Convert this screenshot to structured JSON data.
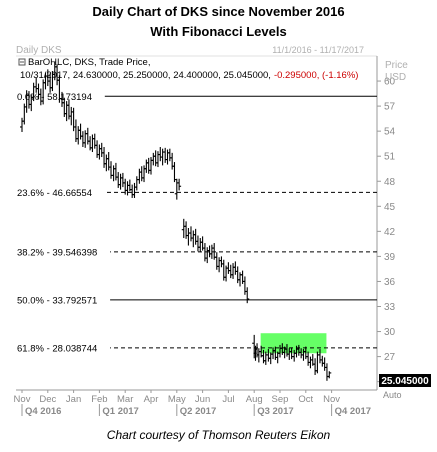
{
  "header": {
    "title_line1": "Daily Chart of DKS since November 2016",
    "title_line2": "With Fibonacci Levels"
  },
  "chart_header": {
    "symbol": "Daily DKS",
    "date_range": "11/1/2016 - 11/17/2017",
    "legend_study": "BarOHLC, DKS, Trade Price,",
    "legend_values_black": "10/31/2017, 24.630000, 25.250000, 24.400000, 25.045000,",
    "legend_values_red": "-0.295000, (-1.16%)",
    "axis_title_line1": "Price",
    "axis_title_line2": "USD"
  },
  "footer": {
    "credit": "Chart courtesy of Thomson Reuters Eikon",
    "auto_label": "Auto"
  },
  "colors": {
    "bars": "#000000",
    "fib_lines": "#000000",
    "highlight": "#66ff66",
    "negative_change": "#cc0000",
    "last_price_tag": "#000000"
  },
  "chart_data": {
    "type": "ohlc",
    "ylim": [
      23,
      63
    ],
    "y_ticks": [
      24,
      27,
      30,
      33,
      36,
      39,
      42,
      45,
      48,
      51,
      54,
      57,
      60
    ],
    "x_month_labels": [
      "Nov",
      "Dec",
      "Jan",
      "Feb",
      "Mar",
      "Apr",
      "May",
      "Jun",
      "Jul",
      "Aug",
      "Sep",
      "Oct",
      "Nov"
    ],
    "x_period_labels": [
      "Q4 2016",
      "Q1 2017",
      "Q2 2017",
      "Q3 2017",
      "Q4 2017"
    ],
    "fibonacci_levels": [
      {
        "label": "0.0%",
        "value": "58.173194",
        "price": 58.173194,
        "style": "solid"
      },
      {
        "label": "23.6%",
        "value": "46.66554",
        "price": 46.66554,
        "style": "dashed"
      },
      {
        "label": "38.2%",
        "value": "39.546398",
        "price": 39.546398,
        "style": "dashed"
      },
      {
        "label": "50.0%",
        "value": "33.792571",
        "price": 33.792571,
        "style": "solid"
      },
      {
        "label": "61.8%",
        "value": "28.038744",
        "price": 28.038744,
        "style": "dashed"
      }
    ],
    "highlight_zone": {
      "low": 27.4,
      "high": 29.8,
      "start_month_index": 9.25,
      "end_month_index": 11.8
    },
    "last_price": "25.045000",
    "last_price_value": 25.045,
    "bars": [
      {
        "t": 0.0,
        "o": 54.5,
        "h": 55.6,
        "l": 53.9,
        "c": 55.2
      },
      {
        "t": 0.09,
        "o": 55.2,
        "h": 57.3,
        "l": 54.8,
        "c": 56.9
      },
      {
        "t": 0.18,
        "o": 56.9,
        "h": 58.9,
        "l": 56.2,
        "c": 58.3
      },
      {
        "t": 0.27,
        "o": 58.3,
        "h": 58.8,
        "l": 56.7,
        "c": 57.2
      },
      {
        "t": 0.36,
        "o": 57.2,
        "h": 58.4,
        "l": 56.4,
        "c": 58.0
      },
      {
        "t": 0.45,
        "o": 58.0,
        "h": 59.8,
        "l": 57.6,
        "c": 59.3
      },
      {
        "t": 0.55,
        "o": 59.3,
        "h": 60.4,
        "l": 58.6,
        "c": 59.1
      },
      {
        "t": 0.64,
        "o": 59.1,
        "h": 59.7,
        "l": 57.8,
        "c": 58.4
      },
      {
        "t": 0.73,
        "o": 58.4,
        "h": 59.1,
        "l": 57.1,
        "c": 57.6
      },
      {
        "t": 0.82,
        "o": 57.6,
        "h": 60.2,
        "l": 57.2,
        "c": 59.8
      },
      {
        "t": 0.91,
        "o": 59.8,
        "h": 61.0,
        "l": 59.0,
        "c": 60.6
      },
      {
        "t": 1.0,
        "o": 60.6,
        "h": 61.4,
        "l": 59.4,
        "c": 60.0
      },
      {
        "t": 1.09,
        "o": 60.0,
        "h": 60.9,
        "l": 58.6,
        "c": 59.2
      },
      {
        "t": 1.18,
        "o": 59.2,
        "h": 61.2,
        "l": 58.8,
        "c": 60.8
      },
      {
        "t": 1.27,
        "o": 60.8,
        "h": 62.3,
        "l": 60.1,
        "c": 61.7
      },
      {
        "t": 1.36,
        "o": 61.7,
        "h": 62.0,
        "l": 59.5,
        "c": 60.1
      },
      {
        "t": 1.45,
        "o": 60.1,
        "h": 60.7,
        "l": 57.4,
        "c": 57.9
      },
      {
        "t": 1.55,
        "o": 57.9,
        "h": 58.7,
        "l": 56.9,
        "c": 57.4
      },
      {
        "t": 1.64,
        "o": 57.4,
        "h": 58.0,
        "l": 55.7,
        "c": 56.1
      },
      {
        "t": 1.73,
        "o": 56.1,
        "h": 57.6,
        "l": 55.2,
        "c": 57.1
      },
      {
        "t": 1.82,
        "o": 57.1,
        "h": 57.8,
        "l": 55.4,
        "c": 55.8
      },
      {
        "t": 1.91,
        "o": 55.8,
        "h": 56.9,
        "l": 54.7,
        "c": 56.3
      },
      {
        "t": 2.0,
        "o": 56.3,
        "h": 56.8,
        "l": 54.0,
        "c": 54.5
      },
      {
        "t": 2.09,
        "o": 54.5,
        "h": 55.4,
        "l": 52.7,
        "c": 53.1
      },
      {
        "t": 2.18,
        "o": 53.1,
        "h": 54.6,
        "l": 52.4,
        "c": 54.1
      },
      {
        "t": 2.27,
        "o": 54.1,
        "h": 54.9,
        "l": 53.0,
        "c": 53.4
      },
      {
        "t": 2.36,
        "o": 53.4,
        "h": 54.0,
        "l": 52.1,
        "c": 52.6
      },
      {
        "t": 2.45,
        "o": 52.6,
        "h": 54.1,
        "l": 52.0,
        "c": 53.7
      },
      {
        "t": 2.55,
        "o": 53.7,
        "h": 54.4,
        "l": 52.4,
        "c": 52.8
      },
      {
        "t": 2.64,
        "o": 52.8,
        "h": 53.4,
        "l": 51.7,
        "c": 52.0
      },
      {
        "t": 2.73,
        "o": 52.0,
        "h": 53.6,
        "l": 51.5,
        "c": 53.1
      },
      {
        "t": 2.82,
        "o": 53.1,
        "h": 53.7,
        "l": 51.9,
        "c": 52.3
      },
      {
        "t": 2.91,
        "o": 52.3,
        "h": 52.9,
        "l": 50.8,
        "c": 51.2
      },
      {
        "t": 3.0,
        "o": 51.2,
        "h": 52.4,
        "l": 50.6,
        "c": 51.9
      },
      {
        "t": 3.09,
        "o": 51.9,
        "h": 52.6,
        "l": 50.9,
        "c": 51.4
      },
      {
        "t": 3.18,
        "o": 51.4,
        "h": 52.1,
        "l": 49.6,
        "c": 50.1
      },
      {
        "t": 3.27,
        "o": 50.1,
        "h": 51.2,
        "l": 49.2,
        "c": 50.7
      },
      {
        "t": 3.36,
        "o": 50.7,
        "h": 51.5,
        "l": 49.3,
        "c": 49.7
      },
      {
        "t": 3.45,
        "o": 49.7,
        "h": 50.4,
        "l": 48.3,
        "c": 48.7
      },
      {
        "t": 3.55,
        "o": 48.7,
        "h": 49.9,
        "l": 48.0,
        "c": 49.5
      },
      {
        "t": 3.64,
        "o": 49.5,
        "h": 50.2,
        "l": 48.1,
        "c": 48.5
      },
      {
        "t": 3.73,
        "o": 48.5,
        "h": 49.1,
        "l": 47.2,
        "c": 47.6
      },
      {
        "t": 3.82,
        "o": 47.6,
        "h": 48.9,
        "l": 47.0,
        "c": 48.4
      },
      {
        "t": 3.91,
        "o": 48.4,
        "h": 49.0,
        "l": 47.3,
        "c": 47.8
      },
      {
        "t": 4.0,
        "o": 47.8,
        "h": 48.3,
        "l": 46.4,
        "c": 46.9
      },
      {
        "t": 4.09,
        "o": 46.9,
        "h": 48.0,
        "l": 46.3,
        "c": 47.5
      },
      {
        "t": 4.18,
        "o": 47.5,
        "h": 48.2,
        "l": 46.8,
        "c": 47.0
      },
      {
        "t": 4.27,
        "o": 47.0,
        "h": 47.6,
        "l": 46.0,
        "c": 46.4
      },
      {
        "t": 4.36,
        "o": 46.4,
        "h": 47.8,
        "l": 46.0,
        "c": 47.3
      },
      {
        "t": 4.45,
        "o": 47.3,
        "h": 48.6,
        "l": 46.9,
        "c": 48.2
      },
      {
        "t": 4.55,
        "o": 48.2,
        "h": 49.5,
        "l": 47.7,
        "c": 49.1
      },
      {
        "t": 4.64,
        "o": 49.1,
        "h": 49.8,
        "l": 48.0,
        "c": 48.4
      },
      {
        "t": 4.73,
        "o": 48.4,
        "h": 49.9,
        "l": 47.9,
        "c": 49.5
      },
      {
        "t": 4.82,
        "o": 49.5,
        "h": 50.6,
        "l": 49.0,
        "c": 50.2
      },
      {
        "t": 4.91,
        "o": 50.2,
        "h": 50.8,
        "l": 48.9,
        "c": 49.3
      },
      {
        "t": 5.0,
        "o": 49.3,
        "h": 50.9,
        "l": 48.8,
        "c": 50.5
      },
      {
        "t": 5.09,
        "o": 50.5,
        "h": 51.4,
        "l": 49.9,
        "c": 51.0
      },
      {
        "t": 5.18,
        "o": 51.0,
        "h": 51.7,
        "l": 49.8,
        "c": 50.2
      },
      {
        "t": 5.27,
        "o": 50.2,
        "h": 51.6,
        "l": 49.7,
        "c": 51.2
      },
      {
        "t": 5.36,
        "o": 51.2,
        "h": 52.1,
        "l": 50.4,
        "c": 50.9
      },
      {
        "t": 5.45,
        "o": 50.9,
        "h": 51.9,
        "l": 49.9,
        "c": 51.5
      },
      {
        "t": 5.55,
        "o": 51.5,
        "h": 52.0,
        "l": 50.2,
        "c": 50.6
      },
      {
        "t": 5.64,
        "o": 50.6,
        "h": 51.8,
        "l": 50.0,
        "c": 51.4
      },
      {
        "t": 5.73,
        "o": 51.4,
        "h": 51.9,
        "l": 50.4,
        "c": 50.8
      },
      {
        "t": 5.82,
        "o": 50.8,
        "h": 51.4,
        "l": 49.4,
        "c": 49.8
      },
      {
        "t": 5.91,
        "o": 49.8,
        "h": 50.3,
        "l": 47.9,
        "c": 48.2
      },
      {
        "t": 6.0,
        "o": 46.5,
        "h": 48.3,
        "l": 45.8,
        "c": 47.8
      },
      {
        "t": 6.09,
        "o": 47.8,
        "h": 48.3,
        "l": 46.9,
        "c": 47.4
      },
      {
        "t": 6.27,
        "o": 42.2,
        "h": 43.5,
        "l": 41.2,
        "c": 42.6
      },
      {
        "t": 6.36,
        "o": 42.6,
        "h": 43.2,
        "l": 41.1,
        "c": 41.5
      },
      {
        "t": 6.45,
        "o": 41.5,
        "h": 42.4,
        "l": 40.3,
        "c": 41.8
      },
      {
        "t": 6.55,
        "o": 41.8,
        "h": 42.6,
        "l": 40.8,
        "c": 41.2
      },
      {
        "t": 6.64,
        "o": 41.2,
        "h": 42.1,
        "l": 40.1,
        "c": 41.6
      },
      {
        "t": 6.73,
        "o": 41.6,
        "h": 42.3,
        "l": 40.4,
        "c": 40.8
      },
      {
        "t": 6.82,
        "o": 40.8,
        "h": 41.5,
        "l": 39.6,
        "c": 40.1
      },
      {
        "t": 6.91,
        "o": 40.1,
        "h": 41.2,
        "l": 39.5,
        "c": 40.7
      },
      {
        "t": 7.0,
        "o": 40.7,
        "h": 41.4,
        "l": 39.7,
        "c": 40.0
      },
      {
        "t": 7.09,
        "o": 40.0,
        "h": 40.6,
        "l": 38.4,
        "c": 38.8
      },
      {
        "t": 7.18,
        "o": 38.8,
        "h": 40.1,
        "l": 38.2,
        "c": 39.7
      },
      {
        "t": 7.27,
        "o": 39.7,
        "h": 40.3,
        "l": 38.9,
        "c": 39.3
      },
      {
        "t": 7.36,
        "o": 39.3,
        "h": 40.4,
        "l": 38.7,
        "c": 40.0
      },
      {
        "t": 7.45,
        "o": 40.0,
        "h": 40.6,
        "l": 38.6,
        "c": 38.9
      },
      {
        "t": 7.55,
        "o": 38.9,
        "h": 39.5,
        "l": 37.4,
        "c": 37.8
      },
      {
        "t": 7.64,
        "o": 37.8,
        "h": 38.9,
        "l": 37.1,
        "c": 38.5
      },
      {
        "t": 7.73,
        "o": 38.5,
        "h": 39.0,
        "l": 37.7,
        "c": 38.1
      },
      {
        "t": 7.82,
        "o": 38.1,
        "h": 38.6,
        "l": 36.1,
        "c": 36.5
      },
      {
        "t": 7.91,
        "o": 36.5,
        "h": 37.9,
        "l": 36.0,
        "c": 37.6
      },
      {
        "t": 8.0,
        "o": 37.6,
        "h": 38.3,
        "l": 36.9,
        "c": 37.3
      },
      {
        "t": 8.09,
        "o": 37.3,
        "h": 38.0,
        "l": 36.4,
        "c": 36.8
      },
      {
        "t": 8.18,
        "o": 36.8,
        "h": 38.2,
        "l": 36.3,
        "c": 37.7
      },
      {
        "t": 8.27,
        "o": 37.7,
        "h": 38.4,
        "l": 36.8,
        "c": 37.2
      },
      {
        "t": 8.36,
        "o": 37.2,
        "h": 37.8,
        "l": 35.8,
        "c": 36.2
      },
      {
        "t": 8.45,
        "o": 36.2,
        "h": 37.1,
        "l": 35.4,
        "c": 36.8
      },
      {
        "t": 8.55,
        "o": 36.8,
        "h": 37.3,
        "l": 35.7,
        "c": 36.0
      },
      {
        "t": 8.64,
        "o": 36.0,
        "h": 36.6,
        "l": 34.4,
        "c": 34.8
      },
      {
        "t": 8.73,
        "o": 34.8,
        "h": 35.3,
        "l": 33.4,
        "c": 33.9
      },
      {
        "t": 9.0,
        "o": 28.6,
        "h": 29.6,
        "l": 26.8,
        "c": 27.4
      },
      {
        "t": 9.05,
        "o": 27.4,
        "h": 28.3,
        "l": 26.5,
        "c": 27.9
      },
      {
        "t": 9.11,
        "o": 27.9,
        "h": 28.6,
        "l": 26.9,
        "c": 27.2
      },
      {
        "t": 9.18,
        "o": 27.2,
        "h": 28.0,
        "l": 26.3,
        "c": 27.6
      },
      {
        "t": 9.27,
        "o": 27.6,
        "h": 28.3,
        "l": 26.9,
        "c": 27.1
      },
      {
        "t": 9.36,
        "o": 27.1,
        "h": 27.8,
        "l": 26.2,
        "c": 26.5
      },
      {
        "t": 9.45,
        "o": 26.5,
        "h": 27.6,
        "l": 26.0,
        "c": 27.2
      },
      {
        "t": 9.55,
        "o": 27.2,
        "h": 27.9,
        "l": 26.4,
        "c": 26.8
      },
      {
        "t": 9.64,
        "o": 26.8,
        "h": 27.5,
        "l": 26.1,
        "c": 27.3
      },
      {
        "t": 9.73,
        "o": 27.3,
        "h": 28.1,
        "l": 26.7,
        "c": 27.7
      },
      {
        "t": 9.82,
        "o": 27.7,
        "h": 28.2,
        "l": 26.6,
        "c": 26.9
      },
      {
        "t": 9.91,
        "o": 26.9,
        "h": 27.6,
        "l": 26.2,
        "c": 27.4
      },
      {
        "t": 10.0,
        "o": 27.4,
        "h": 28.4,
        "l": 26.9,
        "c": 28.0
      },
      {
        "t": 10.09,
        "o": 28.0,
        "h": 28.6,
        "l": 27.2,
        "c": 27.5
      },
      {
        "t": 10.18,
        "o": 27.5,
        "h": 28.2,
        "l": 26.8,
        "c": 27.9
      },
      {
        "t": 10.27,
        "o": 27.9,
        "h": 28.5,
        "l": 27.0,
        "c": 27.3
      },
      {
        "t": 10.36,
        "o": 27.3,
        "h": 28.0,
        "l": 26.6,
        "c": 27.6
      },
      {
        "t": 10.45,
        "o": 27.6,
        "h": 28.1,
        "l": 26.7,
        "c": 27.0
      },
      {
        "t": 10.55,
        "o": 27.0,
        "h": 27.8,
        "l": 26.4,
        "c": 27.4
      },
      {
        "t": 10.64,
        "o": 27.4,
        "h": 28.3,
        "l": 26.9,
        "c": 27.9
      },
      {
        "t": 10.73,
        "o": 27.9,
        "h": 28.4,
        "l": 27.1,
        "c": 27.5
      },
      {
        "t": 10.82,
        "o": 27.5,
        "h": 28.0,
        "l": 26.8,
        "c": 27.2
      },
      {
        "t": 10.91,
        "o": 27.2,
        "h": 27.9,
        "l": 26.5,
        "c": 27.6
      },
      {
        "t": 11.0,
        "o": 27.6,
        "h": 28.2,
        "l": 26.7,
        "c": 27.0
      },
      {
        "t": 11.09,
        "o": 27.0,
        "h": 27.6,
        "l": 25.9,
        "c": 26.3
      },
      {
        "t": 11.18,
        "o": 26.3,
        "h": 27.0,
        "l": 25.6,
        "c": 26.6
      },
      {
        "t": 11.27,
        "o": 26.6,
        "h": 27.3,
        "l": 25.9,
        "c": 26.1
      },
      {
        "t": 11.36,
        "o": 26.1,
        "h": 26.8,
        "l": 24.8,
        "c": 25.3
      },
      {
        "t": 11.45,
        "o": 25.3,
        "h": 27.6,
        "l": 25.0,
        "c": 27.2
      },
      {
        "t": 11.55,
        "o": 27.2,
        "h": 27.9,
        "l": 26.2,
        "c": 26.6
      },
      {
        "t": 11.64,
        "o": 26.6,
        "h": 27.1,
        "l": 25.8,
        "c": 26.2
      },
      {
        "t": 11.73,
        "o": 26.2,
        "h": 26.9,
        "l": 25.3,
        "c": 25.7
      },
      {
        "t": 11.82,
        "o": 25.7,
        "h": 26.2,
        "l": 24.1,
        "c": 24.6
      },
      {
        "t": 11.91,
        "o": 24.63,
        "h": 25.25,
        "l": 24.4,
        "c": 25.045
      }
    ]
  }
}
